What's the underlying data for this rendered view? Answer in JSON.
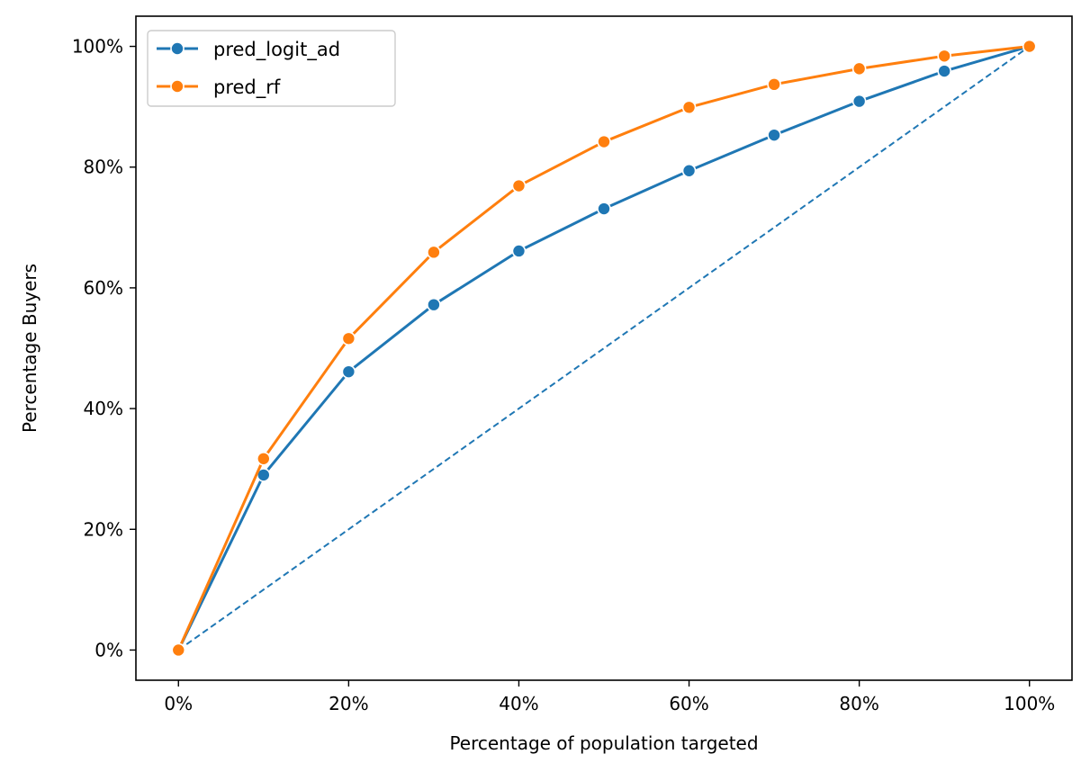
{
  "chart_data": {
    "type": "line",
    "title": "",
    "xlabel": "Percentage of population targeted",
    "ylabel": "Percentage Buyers",
    "x": [
      0,
      10,
      20,
      30,
      40,
      50,
      60,
      70,
      80,
      90,
      100
    ],
    "xlim": [
      -5,
      105
    ],
    "ylim": [
      -5,
      105
    ],
    "x_ticks": [
      0,
      20,
      40,
      60,
      80,
      100
    ],
    "x_tick_labels": [
      "0%",
      "20%",
      "40%",
      "60%",
      "80%",
      "100%"
    ],
    "y_ticks": [
      0,
      20,
      40,
      60,
      80,
      100
    ],
    "y_tick_labels": [
      "0%",
      "20%",
      "40%",
      "60%",
      "80%",
      "100%"
    ],
    "series": [
      {
        "name": "pred_logit_ad",
        "color": "#1f77b4",
        "values": [
          0,
          29.0,
          46.1,
          57.2,
          66.1,
          73.1,
          79.4,
          85.3,
          90.9,
          95.9,
          100
        ]
      },
      {
        "name": "pred_rf",
        "color": "#ff7f0e",
        "values": [
          0,
          31.7,
          51.6,
          65.9,
          76.9,
          84.2,
          89.9,
          93.7,
          96.3,
          98.4,
          100
        ]
      }
    ],
    "reference_line": {
      "style": "dashed",
      "color": "#1f77b4",
      "x": [
        0,
        100
      ],
      "y": [
        0,
        100
      ]
    },
    "legend_position": "top-left",
    "grid": false
  }
}
